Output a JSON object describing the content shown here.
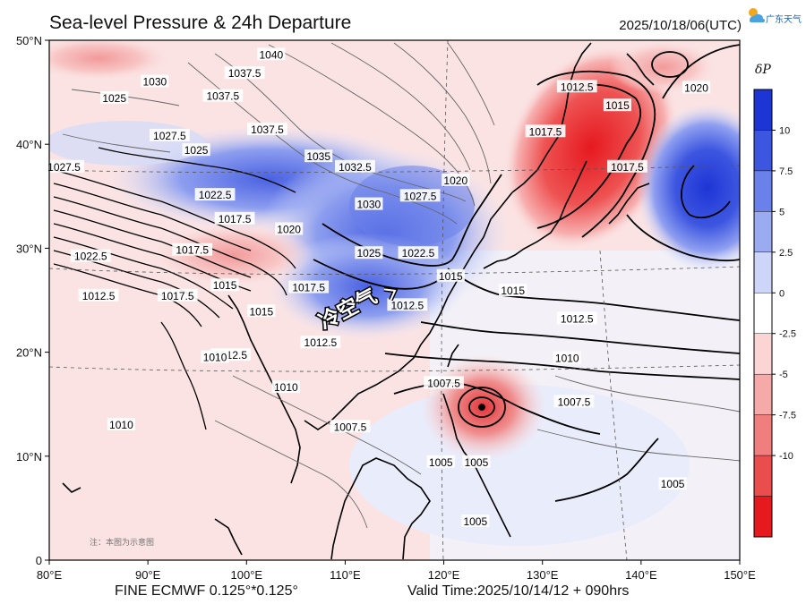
{
  "header": {
    "title": "Sea-level Pressure & 24h Departure",
    "valid_datetime": "2025/10/18/06(UTC)",
    "brand_name": "广东天气",
    "brand_icon": "sun-cloud-icon"
  },
  "footer": {
    "model": "FINE ECMWF 0.125°*0.125°",
    "valid_time": "Valid Time:2025/10/14/12 + 090hrs"
  },
  "map": {
    "lon_range": [
      80,
      150
    ],
    "lat_range": [
      0,
      50
    ],
    "lon_ticks": [
      "80°E",
      "90°E",
      "100°E",
      "110°E",
      "120°E",
      "130°E",
      "140°E",
      "150°E"
    ],
    "lat_ticks": [
      "0",
      "10°N",
      "20°N",
      "30°N",
      "40°N",
      "50°N"
    ],
    "annotation": "冷空气",
    "note": "注：本图为示意图",
    "isobar_labels": [
      {
        "text": "1040",
        "lon": 102.5,
        "lat": 48.6
      },
      {
        "text": "1037.5",
        "lon": 99.8,
        "lat": 46.8
      },
      {
        "text": "1030",
        "lon": 90.7,
        "lat": 46.0
      },
      {
        "text": "1037.5",
        "lon": 97.6,
        "lat": 44.6
      },
      {
        "text": "1025",
        "lon": 86.6,
        "lat": 44.4
      },
      {
        "text": "1037.5",
        "lon": 102.1,
        "lat": 41.4
      },
      {
        "text": "1027.5",
        "lon": 92.2,
        "lat": 40.8
      },
      {
        "text": "1025",
        "lon": 94.9,
        "lat": 39.4
      },
      {
        "text": "1035",
        "lon": 107.3,
        "lat": 38.8
      },
      {
        "text": "1032.5",
        "lon": 111.0,
        "lat": 37.8
      },
      {
        "text": "1027.5",
        "lon": 81.5,
        "lat": 37.8
      },
      {
        "text": "1022.5",
        "lon": 96.8,
        "lat": 35.1
      },
      {
        "text": "1030",
        "lon": 112.4,
        "lat": 34.2
      },
      {
        "text": "1027.5",
        "lon": 117.6,
        "lat": 35.0
      },
      {
        "text": "1020",
        "lon": 121.2,
        "lat": 36.5
      },
      {
        "text": "1017.5",
        "lon": 98.8,
        "lat": 32.8
      },
      {
        "text": "1020",
        "lon": 104.3,
        "lat": 31.8
      },
      {
        "text": "1025",
        "lon": 112.4,
        "lat": 29.5
      },
      {
        "text": "1022.5",
        "lon": 117.4,
        "lat": 29.5
      },
      {
        "text": "1022.5",
        "lon": 84.2,
        "lat": 29.2
      },
      {
        "text": "1017.5",
        "lon": 94.5,
        "lat": 29.8
      },
      {
        "text": "1015",
        "lon": 120.7,
        "lat": 27.3
      },
      {
        "text": "1015",
        "lon": 97.8,
        "lat": 26.4
      },
      {
        "text": "1017.5",
        "lon": 93.0,
        "lat": 25.4
      },
      {
        "text": "1012.5",
        "lon": 85.0,
        "lat": 25.4
      },
      {
        "text": "1017.5",
        "lon": 106.3,
        "lat": 26.2
      },
      {
        "text": "1012.5",
        "lon": 116.3,
        "lat": 24.5
      },
      {
        "text": "1015",
        "lon": 101.5,
        "lat": 23.9
      },
      {
        "text": "1015",
        "lon": 127.0,
        "lat": 25.9
      },
      {
        "text": "1012.5",
        "lon": 98.4,
        "lat": 19.7
      },
      {
        "text": "1012.5",
        "lon": 107.5,
        "lat": 20.9
      },
      {
        "text": "1010",
        "lon": 96.8,
        "lat": 19.5
      },
      {
        "text": "1012.5",
        "lon": 133.5,
        "lat": 23.2
      },
      {
        "text": "1010",
        "lon": 132.5,
        "lat": 19.4
      },
      {
        "text": "1010",
        "lon": 104.0,
        "lat": 16.6
      },
      {
        "text": "1007.5",
        "lon": 120.0,
        "lat": 17.0
      },
      {
        "text": "1007.5",
        "lon": 133.2,
        "lat": 15.2
      },
      {
        "text": "1010",
        "lon": 87.3,
        "lat": 13.0
      },
      {
        "text": "1007.5",
        "lon": 110.5,
        "lat": 12.8
      },
      {
        "text": "1005",
        "lon": 119.7,
        "lat": 9.4
      },
      {
        "text": "1005",
        "lon": 123.3,
        "lat": 9.4
      },
      {
        "text": "1005",
        "lon": 143.2,
        "lat": 7.3
      },
      {
        "text": "1005",
        "lon": 123.2,
        "lat": 3.7
      },
      {
        "text": "1012.5",
        "lon": 133.5,
        "lat": 45.5
      },
      {
        "text": "1017.5",
        "lon": 130.3,
        "lat": 41.2
      },
      {
        "text": "1015",
        "lon": 137.6,
        "lat": 43.7
      },
      {
        "text": "1017.5",
        "lon": 138.6,
        "lat": 37.8
      },
      {
        "text": "1020",
        "lon": 145.6,
        "lat": 45.4
      }
    ]
  },
  "colorbar": {
    "title": "δP",
    "ticks": [
      "10",
      "7.5",
      "5",
      "2.5",
      "0",
      "-2.5",
      "-5",
      "-7.5",
      "-10"
    ],
    "colors": [
      "#1e35d6",
      "#3d56e0",
      "#6a80ea",
      "#9babf2",
      "#cdd5f8",
      "#ffffff",
      "#fbd4d4",
      "#f6a9a9",
      "#f17e7e",
      "#ea4d4d",
      "#e6191f"
    ]
  }
}
